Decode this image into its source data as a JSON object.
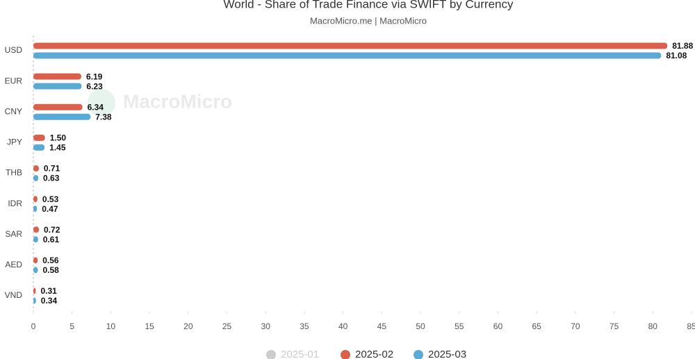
{
  "chart_data": {
    "type": "hbar",
    "title": "World - Share of Trade Finance via SWIFT by Currency",
    "subtitle": "MacroMicro.me | MacroMicro",
    "watermark": "MacroMicro",
    "categories": [
      "USD",
      "EUR",
      "CNY",
      "JPY",
      "THB",
      "IDR",
      "SAR",
      "AED",
      "VND"
    ],
    "series": [
      {
        "name": "2025-01",
        "color": "#cccccc",
        "hidden": true,
        "values": [
          null,
          null,
          null,
          null,
          null,
          null,
          null,
          null,
          null
        ]
      },
      {
        "name": "2025-02",
        "color": "#d9614c",
        "values": [
          81.88,
          6.19,
          6.34,
          1.5,
          0.71,
          0.53,
          0.72,
          0.56,
          0.31
        ],
        "value_labels": [
          "81.88",
          "6.19",
          "6.34",
          "1.50",
          "0.71",
          "0.53",
          "0.72",
          "0.56",
          "0.31"
        ]
      },
      {
        "name": "2025-03",
        "color": "#5aaad6",
        "values": [
          81.08,
          6.23,
          7.38,
          1.45,
          0.63,
          0.47,
          0.61,
          0.58,
          0.34
        ],
        "value_labels": [
          "81.08",
          "6.23",
          "7.38",
          "1.45",
          "0.63",
          "0.47",
          "0.61",
          "0.58",
          "0.34"
        ]
      }
    ],
    "xlim": [
      0,
      85
    ],
    "xticks": [
      0,
      5,
      10,
      15,
      20,
      25,
      30,
      35,
      40,
      45,
      50,
      55,
      60,
      65,
      70,
      75,
      80,
      85
    ],
    "grid": false,
    "legend": "bottom"
  }
}
